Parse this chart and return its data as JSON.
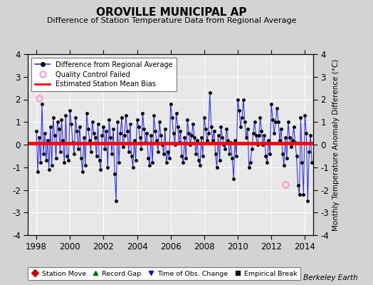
{
  "title": "OROVILLE MUNICIPAL AP",
  "subtitle": "Difference of Station Temperature Data from Regional Average",
  "ylabel_right": "Monthly Temperature Anomaly Difference (°C)",
  "xlim": [
    1997.5,
    2014.5
  ],
  "ylim": [
    -4,
    4
  ],
  "yticks": [
    -4,
    -3,
    -2,
    -1,
    0,
    1,
    2,
    3,
    4
  ],
  "xticks": [
    1998,
    2000,
    2002,
    2004,
    2006,
    2008,
    2010,
    2012,
    2014
  ],
  "mean_bias": 0.05,
  "bg_color": "#d3d3d3",
  "plot_bg_color": "#e8e8e8",
  "line_color": "#3333ff",
  "marker_color": "#000000",
  "bias_color": "#ff0000",
  "qc_fail_x": [
    1998.17
  ],
  "qc_fail_y": [
    2.05
  ],
  "qc_fail2_x": [
    2012.83
  ],
  "qc_fail2_y": [
    -1.75
  ],
  "data_x": [
    1998.0,
    1998.083,
    1998.167,
    1998.25,
    1998.333,
    1998.417,
    1998.5,
    1998.583,
    1998.667,
    1998.75,
    1998.833,
    1998.917,
    1999.0,
    1999.083,
    1999.167,
    1999.25,
    1999.333,
    1999.417,
    1999.5,
    1999.583,
    1999.667,
    1999.75,
    1999.833,
    1999.917,
    2000.0,
    2000.083,
    2000.167,
    2000.25,
    2000.333,
    2000.417,
    2000.5,
    2000.583,
    2000.667,
    2000.75,
    2000.833,
    2000.917,
    2001.0,
    2001.083,
    2001.167,
    2001.25,
    2001.333,
    2001.417,
    2001.5,
    2001.583,
    2001.667,
    2001.75,
    2001.833,
    2001.917,
    2002.0,
    2002.083,
    2002.167,
    2002.25,
    2002.333,
    2002.417,
    2002.5,
    2002.583,
    2002.667,
    2002.75,
    2002.833,
    2002.917,
    2003.0,
    2003.083,
    2003.167,
    2003.25,
    2003.333,
    2003.417,
    2003.5,
    2003.583,
    2003.667,
    2003.75,
    2003.833,
    2003.917,
    2004.0,
    2004.083,
    2004.167,
    2004.25,
    2004.333,
    2004.417,
    2004.5,
    2004.583,
    2004.667,
    2004.75,
    2004.833,
    2004.917,
    2005.0,
    2005.083,
    2005.167,
    2005.25,
    2005.333,
    2005.417,
    2005.5,
    2005.583,
    2005.667,
    2005.75,
    2005.833,
    2005.917,
    2006.0,
    2006.083,
    2006.167,
    2006.25,
    2006.333,
    2006.417,
    2006.5,
    2006.583,
    2006.667,
    2006.75,
    2006.833,
    2006.917,
    2007.0,
    2007.083,
    2007.167,
    2007.25,
    2007.333,
    2007.417,
    2007.5,
    2007.583,
    2007.667,
    2007.75,
    2007.833,
    2007.917,
    2008.0,
    2008.083,
    2008.167,
    2008.25,
    2008.333,
    2008.417,
    2008.5,
    2008.583,
    2008.667,
    2008.75,
    2008.833,
    2008.917,
    2009.0,
    2009.083,
    2009.167,
    2009.25,
    2009.333,
    2009.417,
    2009.5,
    2009.583,
    2009.667,
    2009.75,
    2009.833,
    2009.917,
    2010.0,
    2010.083,
    2010.167,
    2010.25,
    2010.333,
    2010.417,
    2010.5,
    2010.583,
    2010.667,
    2010.75,
    2010.833,
    2010.917,
    2011.0,
    2011.083,
    2011.167,
    2011.25,
    2011.333,
    2011.417,
    2011.5,
    2011.583,
    2011.667,
    2011.75,
    2011.833,
    2011.917,
    2012.0,
    2012.083,
    2012.167,
    2012.25,
    2012.333,
    2012.417,
    2012.5,
    2012.583,
    2012.667,
    2012.75,
    2012.833,
    2012.917,
    2013.0,
    2013.083,
    2013.167,
    2013.25,
    2013.333,
    2013.417,
    2013.5,
    2013.583,
    2013.667,
    2013.75,
    2013.833,
    2013.917,
    2014.0,
    2014.083,
    2014.167,
    2014.25,
    2014.333,
    2014.417
  ],
  "data_y": [
    0.6,
    -1.2,
    0.3,
    -0.8,
    1.8,
    -0.4,
    0.5,
    -0.7,
    0.2,
    -1.1,
    0.8,
    -0.9,
    1.2,
    0.4,
    -0.6,
    1.0,
    0.7,
    -0.3,
    1.1,
    0.2,
    -0.8,
    1.3,
    -0.5,
    -0.7,
    1.5,
    0.9,
    0.1,
    -0.4,
    1.2,
    0.6,
    -0.2,
    0.8,
    -0.6,
    -1.2,
    0.3,
    -0.9,
    1.4,
    0.7,
    0.2,
    -0.3,
    1.0,
    0.5,
    0.3,
    -0.5,
    0.9,
    -0.7,
    -1.1,
    0.4,
    0.8,
    -0.2,
    0.6,
    -1.0,
    1.1,
    0.3,
    -0.4,
    0.7,
    -1.3,
    -2.5,
    1.0,
    -0.8,
    0.5,
    1.2,
    -0.1,
    0.4,
    1.3,
    0.6,
    -0.3,
    0.9,
    -0.5,
    -1.0,
    0.2,
    -0.7,
    1.1,
    0.8,
    0.3,
    -0.2,
    1.4,
    0.7,
    0.1,
    0.5,
    -0.6,
    -0.9,
    0.4,
    -0.8,
    1.3,
    0.6,
    0.2,
    -0.3,
    1.0,
    0.4,
    0.0,
    -0.4,
    0.7,
    -0.8,
    -0.3,
    -0.6,
    1.8,
    1.2,
    0.5,
    0.0,
    1.4,
    0.8,
    0.1,
    0.6,
    -0.5,
    -0.8,
    0.3,
    -0.6,
    1.1,
    0.5,
    0.0,
    0.4,
    0.9,
    0.3,
    -0.4,
    0.2,
    -0.7,
    -0.9,
    0.3,
    -0.5,
    1.2,
    0.7,
    0.2,
    0.5,
    2.3,
    0.8,
    0.2,
    0.6,
    -0.4,
    -1.0,
    0.4,
    -0.7,
    0.8,
    0.3,
    0.0,
    -0.2,
    0.7,
    0.2,
    -0.4,
    0.1,
    -0.6,
    -1.5,
    0.2,
    -0.5,
    2.0,
    1.5,
    0.8,
    1.2,
    2.0,
    1.0,
    0.3,
    0.7,
    -1.0,
    -0.8,
    -0.2,
    0.5,
    1.0,
    0.4,
    0.0,
    0.4,
    1.2,
    0.6,
    0.0,
    0.4,
    -0.5,
    -0.8,
    0.2,
    -0.4,
    1.8,
    1.1,
    0.5,
    1.0,
    1.6,
    1.0,
    0.2,
    0.7,
    -0.4,
    -0.9,
    0.3,
    -0.6,
    1.0,
    0.3,
    -0.1,
    0.2,
    0.8,
    0.1,
    -0.5,
    -1.8,
    -2.2,
    1.2,
    -0.8,
    -2.2,
    1.3,
    0.5,
    -2.5,
    -0.3,
    0.4,
    -0.8
  ]
}
